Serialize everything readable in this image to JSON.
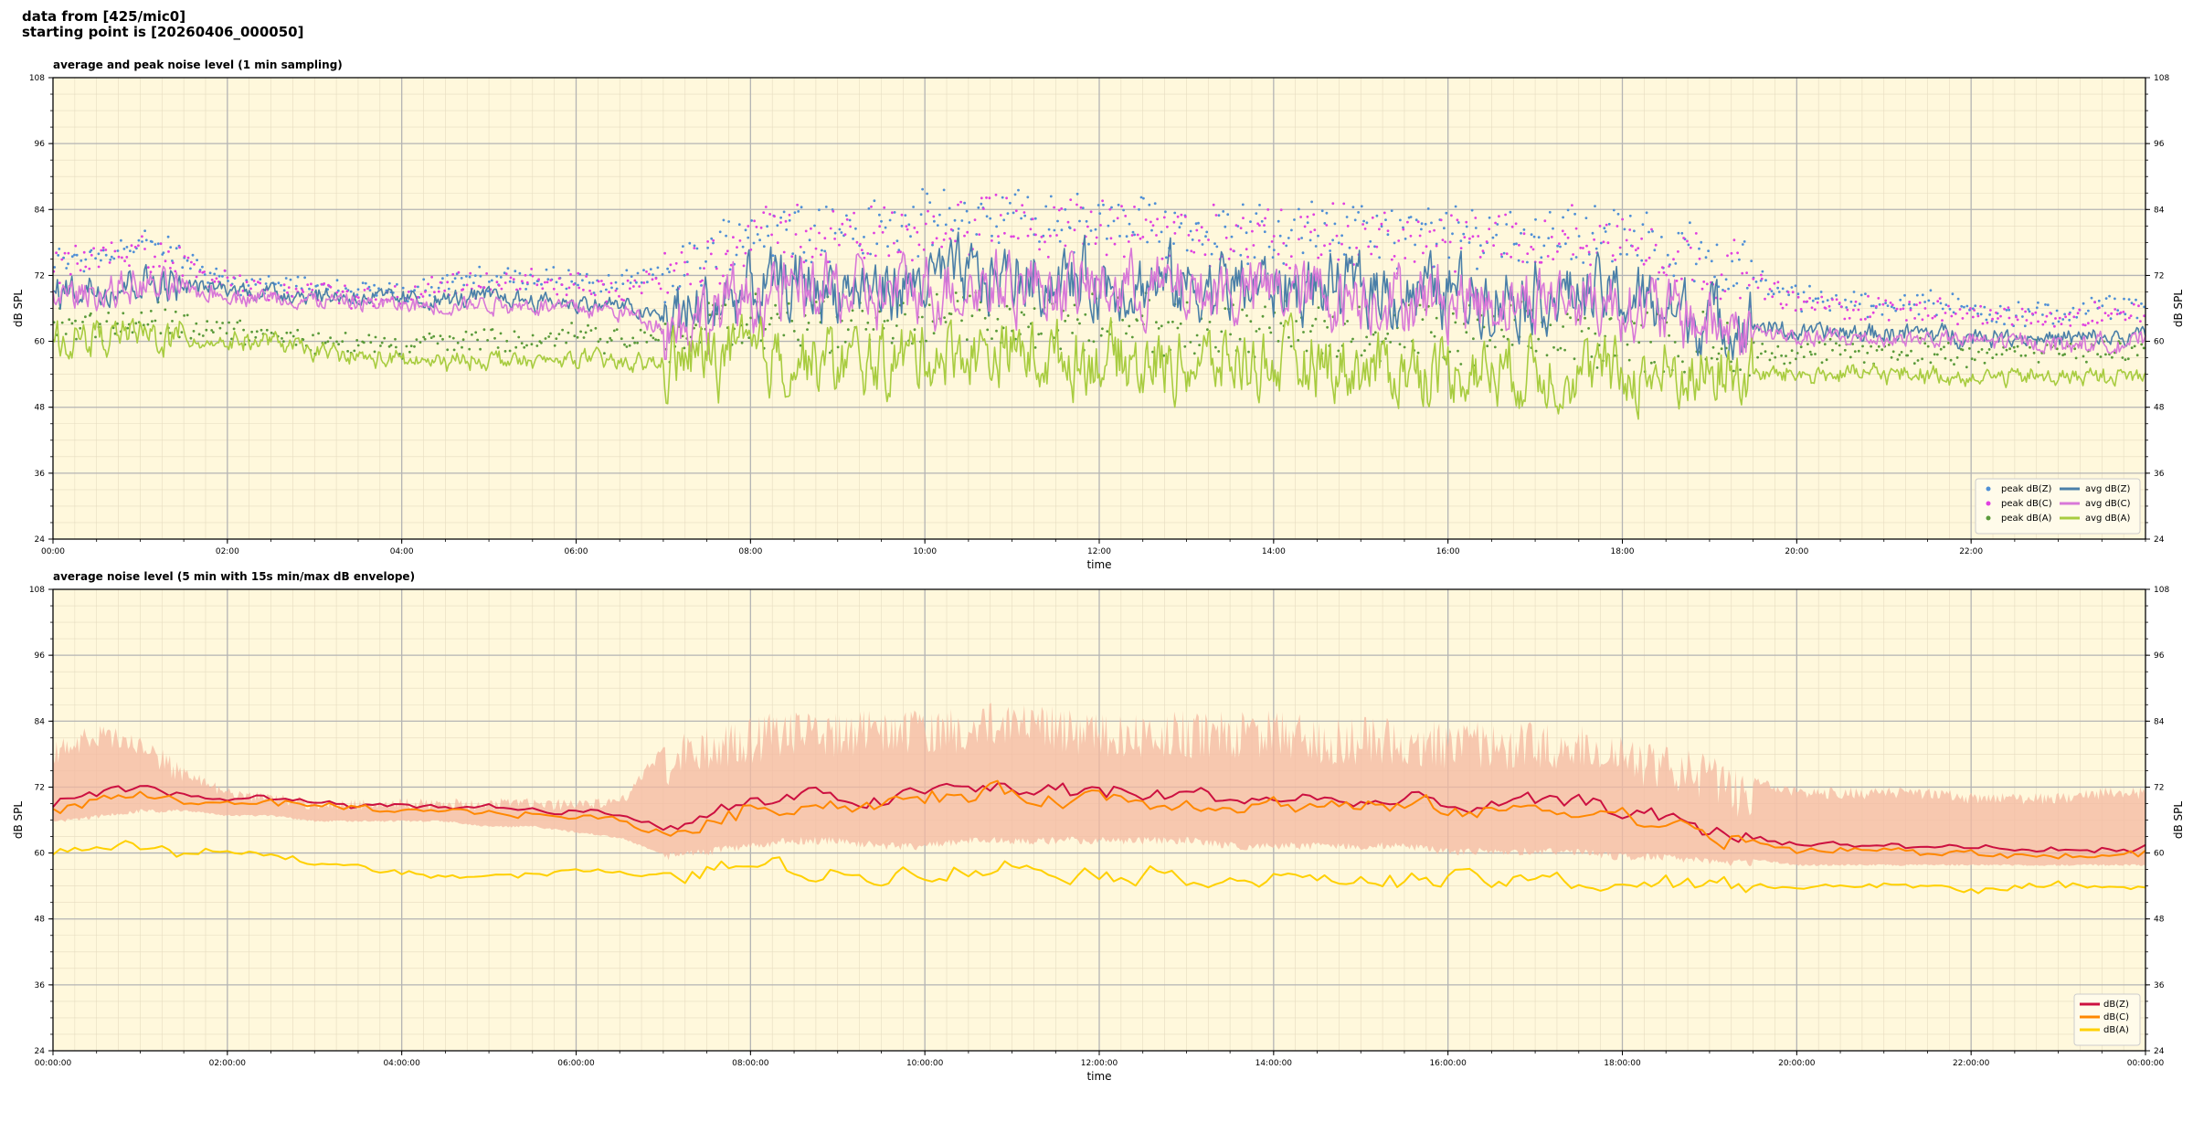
{
  "header": {
    "line1": "data from [425/mic0]",
    "line2": "starting point is [20260406_000050]"
  },
  "colors": {
    "background": "#fff8dc",
    "peak_z": "#4f8fd6",
    "peak_c": "#e040e0",
    "peak_a": "#5a9a3a",
    "avg_z": "#4a7fa8",
    "avg_c": "#d878d8",
    "avg_a": "#a8cc40",
    "dbz": "#cc1040",
    "dbc": "#ff8800",
    "dba": "#ffd000",
    "envelope": "#f4b8a0"
  },
  "chart_data": [
    {
      "type": "line",
      "title": "average and peak noise level (1 min sampling)",
      "xlabel": "time",
      "ylabel": "dB SPL",
      "xlim": [
        0,
        24
      ],
      "ylim": [
        24,
        108
      ],
      "x_ticks": [
        "00:00",
        "02:00",
        "04:00",
        "06:00",
        "08:00",
        "10:00",
        "12:00",
        "14:00",
        "16:00",
        "18:00",
        "20:00",
        "22:00"
      ],
      "y_ticks": [
        24,
        36,
        48,
        60,
        72,
        84,
        96,
        108
      ],
      "grid": true,
      "legend_position": "bottom-right",
      "legend_columns": 2,
      "x": [
        0,
        0.5,
        1,
        1.5,
        2,
        2.5,
        3,
        3.5,
        4,
        4.5,
        5,
        5.5,
        6,
        6.5,
        7,
        7.5,
        8,
        8.5,
        9,
        9.5,
        10,
        10.5,
        11,
        11.5,
        12,
        12.5,
        13,
        13.5,
        14,
        14.5,
        15,
        15.5,
        16,
        16.5,
        17,
        17.5,
        18,
        18.5,
        19,
        19.5,
        20,
        20.5,
        21,
        21.5,
        22,
        22.5,
        23,
        23.5,
        24
      ],
      "series": [
        {
          "name": "peak dB(Z)",
          "style": "dots",
          "color_key": "peak_z",
          "values": [
            74,
            76,
            78,
            75,
            71,
            70,
            70,
            69,
            69,
            71,
            71,
            72,
            71,
            70,
            72,
            76,
            80,
            81,
            80,
            80,
            82,
            82,
            83,
            82,
            81,
            81,
            81,
            80,
            80,
            80,
            80,
            79,
            79,
            79,
            80,
            80,
            79,
            77,
            75,
            72,
            68,
            67,
            67,
            67,
            66,
            65,
            65,
            66,
            67
          ]
        },
        {
          "name": "peak dB(C)",
          "style": "dots",
          "color_key": "peak_c",
          "values": [
            73,
            75,
            77,
            74,
            70,
            69,
            69,
            68,
            68,
            70,
            70,
            71,
            70,
            69,
            71,
            75,
            79,
            80,
            79,
            79,
            81,
            81,
            82,
            81,
            80,
            80,
            80,
            79,
            79,
            79,
            79,
            78,
            78,
            78,
            79,
            79,
            78,
            76,
            74,
            71,
            67,
            66,
            66,
            66,
            65,
            64,
            64,
            65,
            66
          ]
        },
        {
          "name": "peak dB(A)",
          "style": "dots",
          "color_key": "peak_a",
          "values": [
            63,
            63,
            64,
            63,
            62,
            61,
            60,
            60,
            59,
            60,
            60,
            60,
            61,
            60,
            61,
            63,
            64,
            64,
            63,
            63,
            64,
            64,
            64,
            63,
            63,
            63,
            63,
            62,
            62,
            62,
            62,
            61,
            61,
            61,
            61,
            61,
            60,
            60,
            60,
            59,
            58,
            58,
            58,
            58,
            58,
            58,
            58,
            58,
            58
          ]
        },
        {
          "name": "avg dB(Z)",
          "style": "line",
          "color_key": "avg_z",
          "values": [
            69,
            70,
            71,
            70,
            69.5,
            69,
            68.5,
            68,
            67.5,
            67.5,
            68,
            67.5,
            67,
            66.5,
            64,
            66,
            69,
            70,
            70,
            69,
            71,
            71,
            72,
            71,
            71,
            70.5,
            70,
            70,
            70,
            69.5,
            69.5,
            69,
            69,
            68.5,
            69,
            68.5,
            68,
            66,
            64,
            63,
            61.5,
            61.5,
            61.5,
            61.5,
            61,
            61,
            60.5,
            60.5,
            61
          ]
        },
        {
          "name": "avg dB(C)",
          "style": "line",
          "color_key": "avg_c",
          "values": [
            68,
            69,
            70,
            69,
            68.5,
            68,
            67.5,
            67,
            66.5,
            66.5,
            67,
            66.5,
            66,
            65.5,
            63,
            65,
            68,
            69,
            69,
            68,
            70,
            70,
            71,
            70,
            70,
            69.5,
            69,
            69,
            69,
            68.5,
            68.5,
            68,
            68,
            67.5,
            68,
            67.5,
            67,
            65,
            63,
            62,
            60.5,
            60.5,
            60.5,
            60.5,
            60,
            60,
            59.5,
            59.5,
            60
          ]
        },
        {
          "name": "avg dB(A)",
          "style": "line",
          "color_key": "avg_a",
          "values": [
            60,
            61,
            61,
            60.5,
            60,
            60,
            58,
            57,
            56.5,
            56,
            57,
            56,
            57,
            56,
            56,
            57,
            57,
            57,
            56,
            56,
            58,
            58,
            58,
            57,
            57,
            56,
            56,
            56,
            56,
            56,
            55,
            55,
            55,
            55,
            55,
            54,
            54,
            54,
            54,
            54,
            54,
            54,
            54,
            54,
            53.5,
            53.5,
            53.5,
            53.5,
            54
          ]
        }
      ]
    },
    {
      "type": "line",
      "title": "average noise level (5 min with 15s min/max dB envelope)",
      "xlabel": "time",
      "ylabel": "dB SPL",
      "xlim": [
        0,
        24
      ],
      "ylim": [
        24,
        108
      ],
      "x_ticks": [
        "00:00:00",
        "02:00:00",
        "04:00:00",
        "06:00:00",
        "08:00:00",
        "10:00:00",
        "12:00:00",
        "14:00:00",
        "16:00:00",
        "18:00:00",
        "20:00:00",
        "22:00:00",
        "00:00:00"
      ],
      "y_ticks": [
        24,
        36,
        48,
        60,
        72,
        84,
        96,
        108
      ],
      "grid": true,
      "legend_position": "bottom-right",
      "x": [
        0,
        0.5,
        1,
        1.5,
        2,
        2.5,
        3,
        3.5,
        4,
        4.5,
        5,
        5.5,
        6,
        6.5,
        7,
        7.5,
        8,
        8.5,
        9,
        9.5,
        10,
        10.5,
        11,
        11.5,
        12,
        12.5,
        13,
        13.5,
        14,
        14.5,
        15,
        15.5,
        16,
        16.5,
        17,
        17.5,
        18,
        18.5,
        19,
        19.5,
        20,
        20.5,
        21,
        21.5,
        22,
        22.5,
        23,
        23.5,
        24
      ],
      "envelope": {
        "color_key": "envelope",
        "min": [
          66,
          67,
          68,
          68,
          67,
          67,
          66,
          66,
          66,
          66,
          65,
          65,
          64,
          63,
          60,
          61,
          62,
          63,
          63,
          62,
          62,
          63,
          63,
          63,
          63,
          63,
          63,
          62,
          62,
          62,
          62,
          62,
          61,
          61,
          61,
          61,
          60,
          60,
          59,
          59,
          58,
          58,
          58,
          58,
          58,
          58,
          58,
          58,
          58
        ],
        "max": [
          80,
          84,
          82,
          76,
          72,
          71,
          70,
          70,
          70,
          70,
          70,
          70,
          70,
          70,
          80,
          84,
          85,
          86,
          86,
          86,
          87,
          87,
          88,
          87,
          86,
          86,
          86,
          86,
          86,
          85,
          85,
          85,
          84,
          84,
          84,
          84,
          82,
          80,
          78,
          74,
          72,
          72,
          72,
          72,
          71,
          71,
          71,
          72,
          72
        ]
      },
      "series": [
        {
          "name": "dB(Z)",
          "color_key": "dbz",
          "values": [
            69,
            70.5,
            71.5,
            70.5,
            70,
            70,
            69.5,
            69,
            68.5,
            68.5,
            68.5,
            68,
            67.5,
            67,
            64.5,
            66.5,
            69,
            70,
            70,
            69.5,
            71,
            71.5,
            72,
            71,
            71.5,
            70.5,
            70.5,
            70,
            70,
            69.5,
            69.5,
            69,
            69,
            68.5,
            69,
            69,
            68,
            66,
            64,
            63,
            61.5,
            61.5,
            61.5,
            61,
            61,
            60.5,
            60.5,
            60.5,
            61
          ]
        },
        {
          "name": "dB(C)",
          "color_key": "dbc",
          "values": [
            68,
            69.5,
            70.5,
            69.5,
            69,
            69,
            68.5,
            68,
            67.5,
            67.5,
            67.5,
            67,
            66.5,
            66,
            63.5,
            65.5,
            68,
            69,
            69,
            68.5,
            70,
            70.5,
            71,
            70,
            70.5,
            69.5,
            69.5,
            69,
            69,
            68.5,
            68.5,
            68,
            68,
            67.5,
            68,
            68,
            67,
            65,
            63,
            62,
            60.5,
            60.5,
            60.5,
            60,
            60,
            59.5,
            59.5,
            59.5,
            60
          ]
        },
        {
          "name": "dB(A)",
          "color_key": "dba",
          "values": [
            60,
            61,
            61,
            60,
            60,
            59.5,
            58.5,
            57.5,
            56.5,
            56,
            56,
            56,
            57,
            56,
            56,
            57,
            57.5,
            57,
            56,
            56,
            57,
            57,
            57.5,
            57,
            56.5,
            56,
            56,
            55.5,
            55.5,
            55,
            55,
            55,
            55,
            55,
            55,
            54.5,
            54.5,
            54,
            54,
            54,
            54,
            54,
            54,
            54,
            53.5,
            53.5,
            54,
            54,
            54
          ]
        }
      ]
    }
  ]
}
